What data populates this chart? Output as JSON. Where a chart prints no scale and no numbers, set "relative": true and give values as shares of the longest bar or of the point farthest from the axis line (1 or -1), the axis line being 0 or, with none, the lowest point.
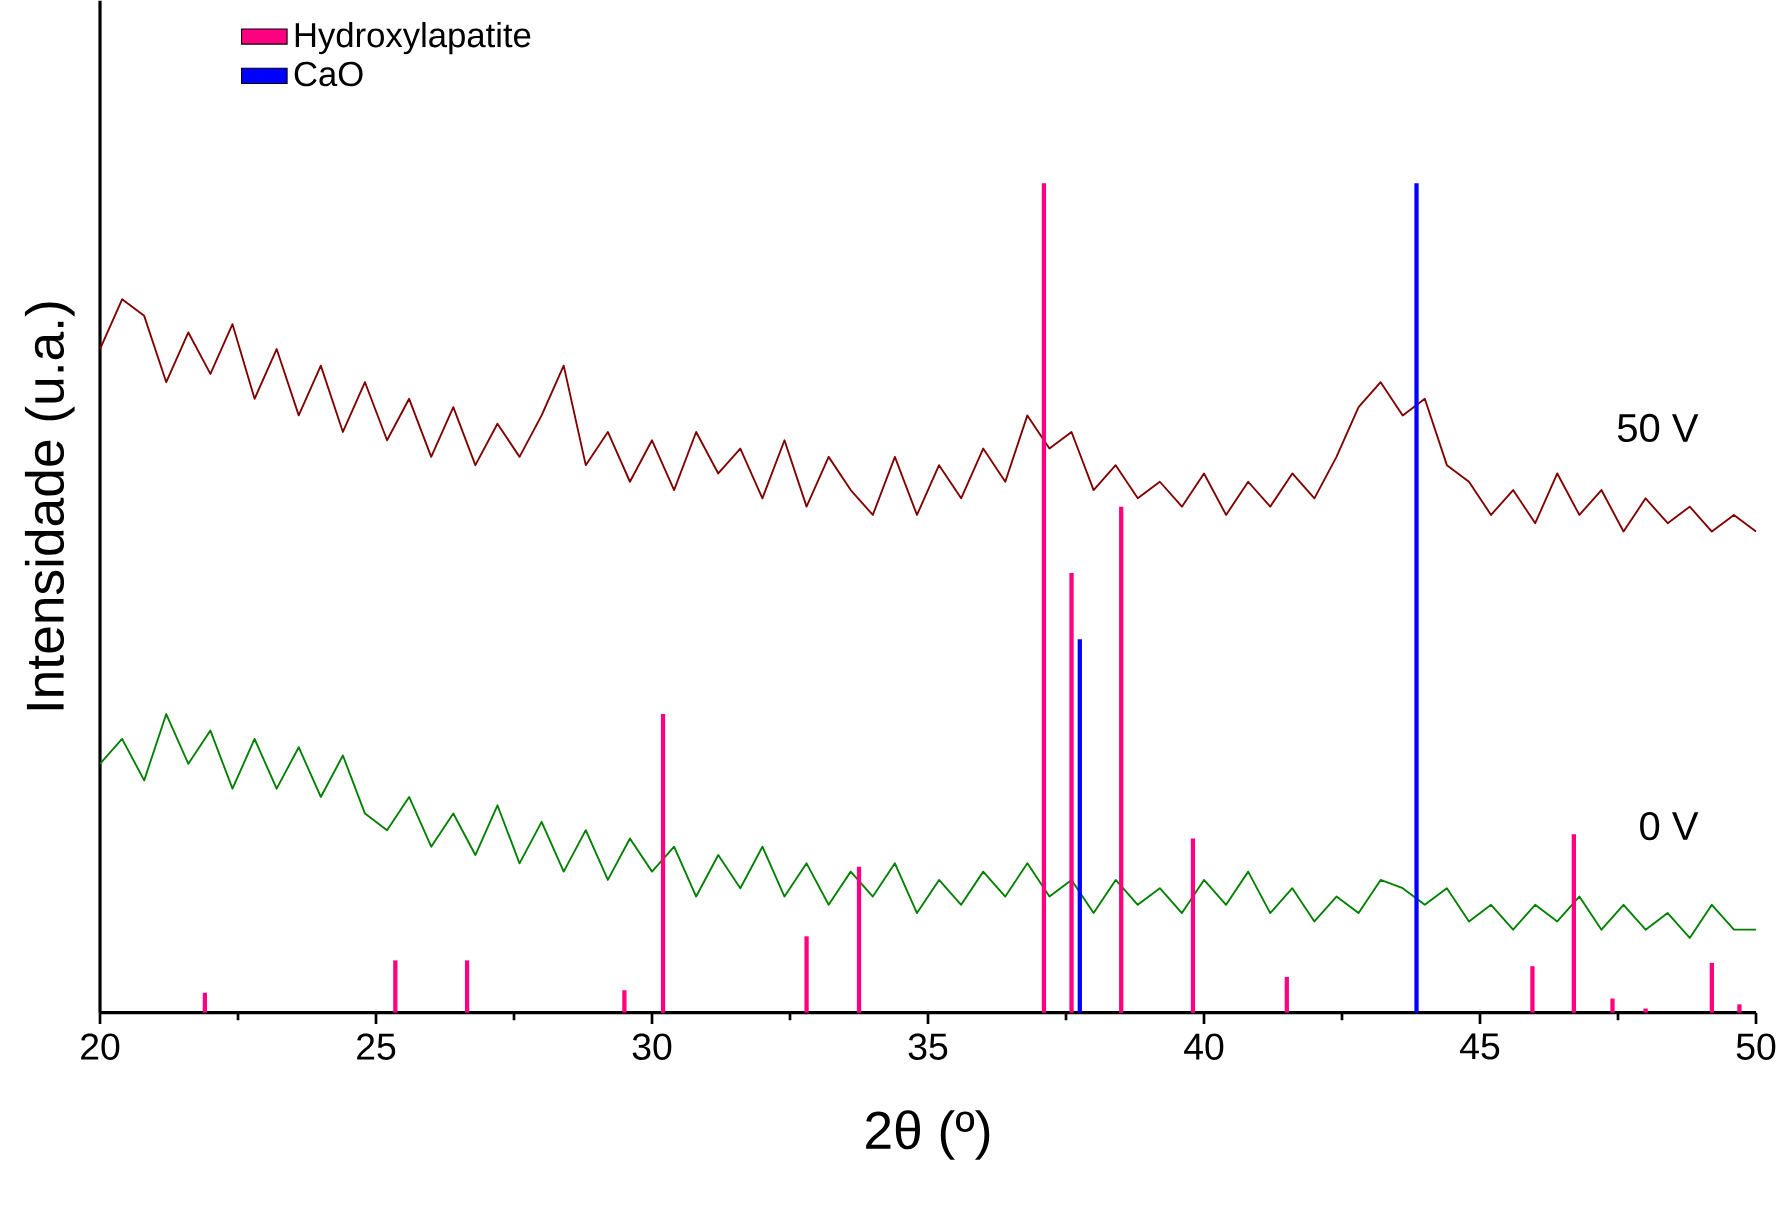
{
  "chart_data": {
    "type": "line",
    "relative": true,
    "xlabel": "2θ (º)",
    "ylabel": "Intensidade (u.a.)",
    "xlim": [
      20,
      50
    ],
    "xticks": [
      20,
      25,
      30,
      35,
      40,
      45,
      50
    ],
    "legend": "top left",
    "grid": false,
    "marker": "none",
    "line_style": "solid",
    "series": [
      {
        "name": "50 V",
        "color": "#800000",
        "x": [
          20.0,
          20.4,
          20.8,
          21.2,
          21.6,
          22.0,
          22.4,
          22.8,
          23.2,
          23.6,
          24.0,
          24.4,
          24.8,
          25.2,
          25.6,
          26.0,
          26.4,
          26.8,
          27.2,
          27.6,
          28.0,
          28.4,
          28.8,
          29.2,
          29.6,
          30.0,
          30.4,
          30.8,
          31.2,
          31.6,
          32.0,
          32.4,
          32.8,
          33.2,
          33.6,
          34.0,
          34.4,
          34.8,
          35.2,
          35.6,
          36.0,
          36.4,
          36.8,
          37.2,
          37.6,
          38.0,
          38.4,
          38.8,
          39.2,
          39.6,
          40.0,
          40.4,
          40.8,
          41.2,
          41.6,
          42.0,
          42.4,
          42.8,
          43.2,
          43.6,
          44.0,
          44.4,
          44.8,
          45.2,
          45.6,
          46.0,
          46.4,
          46.8,
          47.2,
          47.6,
          48.0,
          48.4,
          48.8,
          49.2,
          49.6,
          50.0
        ],
        "values": [
          0.8,
          0.86,
          0.84,
          0.76,
          0.82,
          0.77,
          0.83,
          0.74,
          0.8,
          0.72,
          0.78,
          0.7,
          0.76,
          0.69,
          0.74,
          0.67,
          0.73,
          0.66,
          0.71,
          0.67,
          0.72,
          0.78,
          0.66,
          0.7,
          0.64,
          0.69,
          0.63,
          0.7,
          0.65,
          0.68,
          0.62,
          0.69,
          0.61,
          0.67,
          0.63,
          0.6,
          0.67,
          0.6,
          0.66,
          0.62,
          0.68,
          0.64,
          0.72,
          0.68,
          0.7,
          0.63,
          0.66,
          0.62,
          0.64,
          0.61,
          0.65,
          0.6,
          0.64,
          0.61,
          0.65,
          0.62,
          0.67,
          0.73,
          0.76,
          0.72,
          0.74,
          0.66,
          0.64,
          0.6,
          0.63,
          0.59,
          0.65,
          0.6,
          0.63,
          0.58,
          0.62,
          0.59,
          0.61,
          0.58,
          0.6,
          0.58
        ]
      },
      {
        "name": "0 V",
        "color": "#008000",
        "x": [
          20.0,
          20.4,
          20.8,
          21.2,
          21.6,
          22.0,
          22.4,
          22.8,
          23.2,
          23.6,
          24.0,
          24.4,
          24.8,
          25.2,
          25.6,
          26.0,
          26.4,
          26.8,
          27.2,
          27.6,
          28.0,
          28.4,
          28.8,
          29.2,
          29.6,
          30.0,
          30.4,
          30.8,
          31.2,
          31.6,
          32.0,
          32.4,
          32.8,
          33.2,
          33.6,
          34.0,
          34.4,
          34.8,
          35.2,
          35.6,
          36.0,
          36.4,
          36.8,
          37.2,
          37.6,
          38.0,
          38.4,
          38.8,
          39.2,
          39.6,
          40.0,
          40.4,
          40.8,
          41.2,
          41.6,
          42.0,
          42.4,
          42.8,
          43.2,
          43.6,
          44.0,
          44.4,
          44.8,
          45.2,
          45.6,
          46.0,
          46.4,
          46.8,
          47.2,
          47.6,
          48.0,
          48.4,
          48.8,
          49.2,
          49.6,
          50.0
        ],
        "values": [
          0.3,
          0.33,
          0.28,
          0.36,
          0.3,
          0.34,
          0.27,
          0.33,
          0.27,
          0.32,
          0.26,
          0.31,
          0.24,
          0.22,
          0.26,
          0.2,
          0.24,
          0.19,
          0.25,
          0.18,
          0.23,
          0.17,
          0.22,
          0.16,
          0.21,
          0.17,
          0.2,
          0.14,
          0.19,
          0.15,
          0.2,
          0.14,
          0.18,
          0.13,
          0.17,
          0.14,
          0.18,
          0.12,
          0.16,
          0.13,
          0.17,
          0.14,
          0.18,
          0.14,
          0.16,
          0.12,
          0.16,
          0.13,
          0.15,
          0.12,
          0.16,
          0.13,
          0.17,
          0.12,
          0.15,
          0.11,
          0.14,
          0.12,
          0.16,
          0.15,
          0.13,
          0.15,
          0.11,
          0.13,
          0.1,
          0.13,
          0.11,
          0.14,
          0.1,
          0.13,
          0.1,
          0.12,
          0.09,
          0.13,
          0.1,
          0.1
        ]
      },
      {
        "name": "Hydroxylapatite",
        "type": "bar",
        "color": "#ff0080",
        "x": [
          21.9,
          25.35,
          26.65,
          29.5,
          30.2,
          32.8,
          33.75,
          37.1,
          37.6,
          38.5,
          39.8,
          41.5,
          45.95,
          46.7,
          47.4,
          48.0,
          49.2,
          49.7
        ],
        "values": [
          0.024,
          0.063,
          0.063,
          0.027,
          0.36,
          0.092,
          0.176,
          1.0,
          0.53,
          0.61,
          0.21,
          0.043,
          0.056,
          0.215,
          0.017,
          0.005,
          0.06,
          0.01
        ]
      },
      {
        "name": "CaO",
        "type": "bar",
        "color": "#0000ff",
        "x": [
          37.75,
          43.85
        ],
        "values": [
          0.45,
          1.0
        ]
      }
    ]
  }
}
